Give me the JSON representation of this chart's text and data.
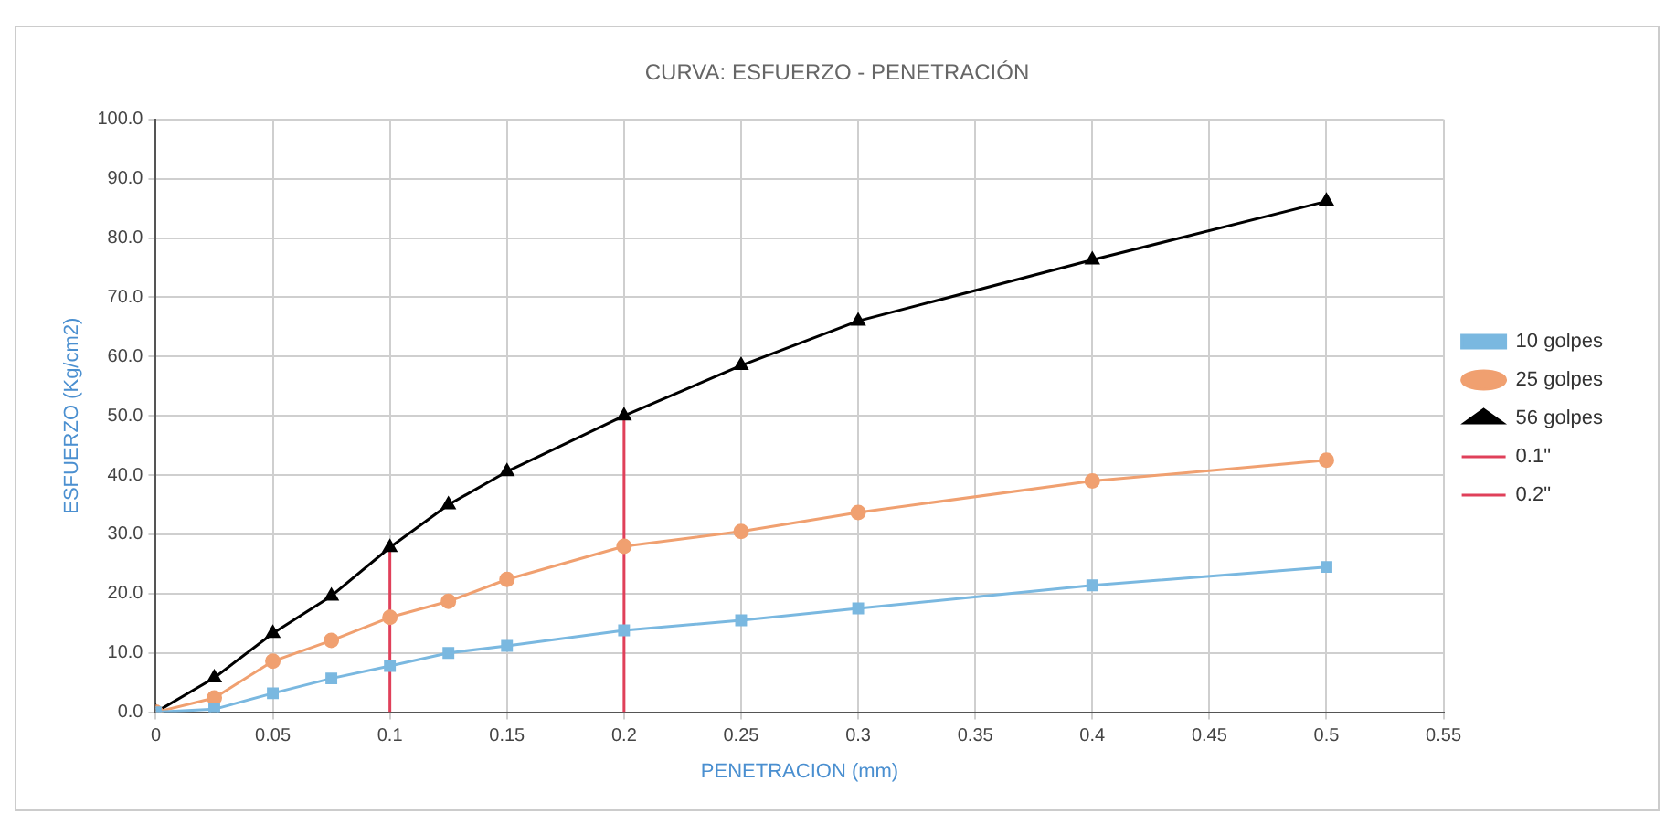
{
  "chart_data": {
    "type": "line",
    "title": "CURVA: ESFUERZO - PENETRACIÓN",
    "xlabel": "PENETRACION (mm)",
    "ylabel": "ESFUERZO (Kg/cm2)",
    "xlim": [
      0,
      0.55
    ],
    "xticks": [
      0,
      0.05,
      0.1,
      0.15,
      0.2,
      0.25,
      0.3,
      0.35,
      0.4,
      0.45,
      0.5,
      0.55
    ],
    "ylim": [
      0,
      100
    ],
    "yticks": [
      {
        "value": 0,
        "label": "0.0"
      },
      {
        "value": 10,
        "label": "10.0"
      },
      {
        "value": 20,
        "label": "20.0"
      },
      {
        "value": 30,
        "label": "30.0"
      },
      {
        "value": 40,
        "label": "40.0"
      },
      {
        "value": 50,
        "label": "50.0"
      },
      {
        "value": 60,
        "label": "60.0"
      },
      {
        "value": 70,
        "label": "70.0"
      },
      {
        "value": 80,
        "label": "80.0"
      },
      {
        "value": 90,
        "label": "90.0"
      },
      {
        "value": 100,
        "label": "100.0"
      }
    ],
    "grid": true,
    "legend": "right",
    "series": [
      {
        "name": "10 golpes",
        "color": "#7ab8e0",
        "marker": "square",
        "x": [
          0,
          0.025,
          0.05,
          0.075,
          0.1,
          0.125,
          0.15,
          0.2,
          0.25,
          0.3,
          0.4,
          0.5
        ],
        "values": [
          0,
          0.5,
          3.2,
          5.7,
          7.8,
          10,
          11.2,
          13.8,
          15.5,
          17.5,
          21.4,
          24.5
        ]
      },
      {
        "name": "25 golpes",
        "color": "#f0a070",
        "marker": "circle",
        "x": [
          0,
          0.025,
          0.05,
          0.075,
          0.1,
          0.125,
          0.15,
          0.2,
          0.25,
          0.3,
          0.4,
          0.5
        ],
        "values": [
          0,
          2.4,
          8.6,
          12.1,
          16,
          18.7,
          22.4,
          28,
          30.5,
          33.7,
          39,
          42.5
        ]
      },
      {
        "name": "56 golpes",
        "color": "#000000",
        "marker": "triangle",
        "x": [
          0,
          0.025,
          0.05,
          0.075,
          0.1,
          0.125,
          0.15,
          0.2,
          0.25,
          0.3,
          0.4,
          0.5
        ],
        "values": [
          0,
          5.8,
          13.3,
          19.6,
          27.8,
          35,
          40.6,
          50,
          58.5,
          66,
          76.3,
          86.2
        ]
      },
      {
        "name": "0.1\"",
        "color": "#e0405a",
        "marker": "none",
        "x": [
          0.1,
          0.1
        ],
        "values": [
          0,
          27.8
        ]
      },
      {
        "name": "0.2\"",
        "color": "#e0405a",
        "marker": "none",
        "x": [
          0.2,
          0.2
        ],
        "values": [
          0,
          50
        ]
      }
    ]
  }
}
